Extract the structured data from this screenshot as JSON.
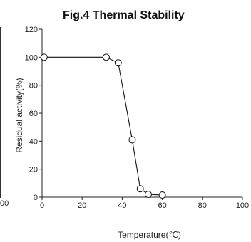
{
  "chart_data": {
    "type": "line",
    "title": "Fig.4 Thermal Stability",
    "xlabel": "Temperature(℃)",
    "ylabel": "Residual activity(%)",
    "xlim": [
      0,
      100
    ],
    "ylim": [
      0,
      120
    ],
    "xticks": [
      "0",
      "20",
      "40",
      "60",
      "80",
      "100"
    ],
    "yticks": [
      "0",
      "20",
      "40",
      "60",
      "80",
      "100",
      "120"
    ],
    "grid": false,
    "series": [
      {
        "x": [
          1,
          32,
          38,
          45,
          49,
          53,
          60
        ],
        "y": [
          100,
          100,
          96,
          41,
          6,
          2,
          1.5
        ]
      }
    ],
    "marker": "open-circle",
    "line_color": "#111111"
  },
  "cropped_left_label": "00"
}
